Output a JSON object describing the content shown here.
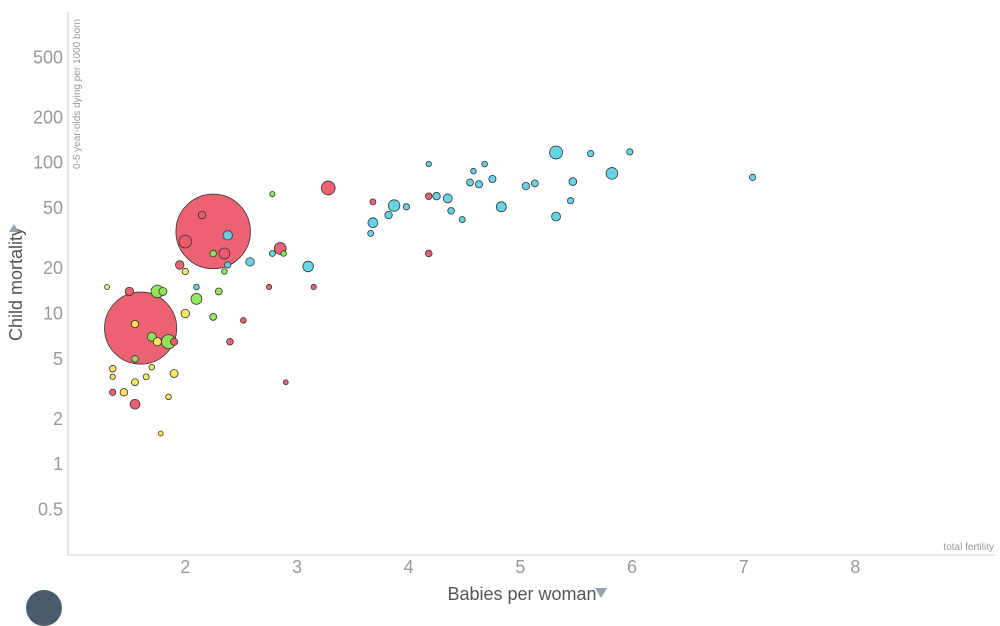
{
  "chart_data": {
    "type": "scatter",
    "xlabel": "Babies per woman",
    "ylabel": "Child mortality",
    "ylabel_sub": "0-5 year-olds dying per 1000 born",
    "xlabel_sub": "total fertility",
    "x_scale": "linear",
    "y_scale": "log",
    "xlim": [
      0.95,
      9.25
    ],
    "ylim": [
      0.25,
      1000
    ],
    "x_ticks": [
      2,
      3,
      4,
      5,
      6,
      7,
      8
    ],
    "y_ticks": [
      0.5,
      1,
      2,
      5,
      10,
      20,
      50,
      100,
      200,
      500
    ],
    "colors": {
      "red": "#ec5a6c",
      "cyan": "#5fd1e3",
      "green": "#8ee653",
      "yellow": "#fbe758"
    },
    "points": [
      {
        "x": 2.25,
        "y": 35,
        "s": 1390,
        "c": "red"
      },
      {
        "x": 1.6,
        "y": 8,
        "s": 1300,
        "c": "red"
      },
      {
        "x": 3.28,
        "y": 68,
        "s": 48,
        "c": "red"
      },
      {
        "x": 2.0,
        "y": 30,
        "s": 40,
        "c": "red"
      },
      {
        "x": 2.85,
        "y": 27,
        "s": 35,
        "c": "red"
      },
      {
        "x": 2.35,
        "y": 25,
        "s": 30,
        "c": "red"
      },
      {
        "x": 1.95,
        "y": 21,
        "s": 18,
        "c": "red"
      },
      {
        "x": 1.5,
        "y": 14,
        "s": 18,
        "c": "red"
      },
      {
        "x": 2.15,
        "y": 45,
        "s": 14,
        "c": "red"
      },
      {
        "x": 1.55,
        "y": 2.5,
        "s": 24,
        "c": "red"
      },
      {
        "x": 1.35,
        "y": 3,
        "s": 10,
        "c": "red"
      },
      {
        "x": 2.4,
        "y": 6.5,
        "s": 11,
        "c": "red"
      },
      {
        "x": 4.18,
        "y": 25,
        "s": 11,
        "c": "red"
      },
      {
        "x": 4.18,
        "y": 60,
        "s": 11,
        "c": "red"
      },
      {
        "x": 3.68,
        "y": 55,
        "s": 9,
        "c": "red"
      },
      {
        "x": 2.52,
        "y": 9,
        "s": 8,
        "c": "red"
      },
      {
        "x": 3.15,
        "y": 15,
        "s": 7,
        "c": "red"
      },
      {
        "x": 2.75,
        "y": 15,
        "s": 7,
        "c": "red"
      },
      {
        "x": 1.9,
        "y": 6.5,
        "s": 13,
        "c": "red"
      },
      {
        "x": 2.9,
        "y": 3.5,
        "s": 6,
        "c": "red"
      },
      {
        "x": 1.75,
        "y": 14,
        "s": 40,
        "c": "green"
      },
      {
        "x": 1.85,
        "y": 6.5,
        "s": 50,
        "c": "green"
      },
      {
        "x": 2.1,
        "y": 12.5,
        "s": 30,
        "c": "green"
      },
      {
        "x": 1.7,
        "y": 7,
        "s": 20,
        "c": "green"
      },
      {
        "x": 2.3,
        "y": 14,
        "s": 12,
        "c": "green"
      },
      {
        "x": 2.25,
        "y": 9.5,
        "s": 12,
        "c": "green"
      },
      {
        "x": 1.55,
        "y": 5,
        "s": 11,
        "c": "green"
      },
      {
        "x": 2.88,
        "y": 25,
        "s": 8,
        "c": "green"
      },
      {
        "x": 2.78,
        "y": 62,
        "s": 7,
        "c": "green"
      },
      {
        "x": 2.25,
        "y": 25,
        "s": 11,
        "c": "green"
      },
      {
        "x": 1.8,
        "y": 14,
        "s": 16,
        "c": "green"
      },
      {
        "x": 2.35,
        "y": 19,
        "s": 8,
        "c": "green"
      },
      {
        "x": 2.0,
        "y": 10,
        "s": 18,
        "c": "yellow"
      },
      {
        "x": 1.9,
        "y": 4,
        "s": 16,
        "c": "yellow"
      },
      {
        "x": 1.75,
        "y": 6.5,
        "s": 17,
        "c": "yellow"
      },
      {
        "x": 1.55,
        "y": 8.5,
        "s": 13,
        "c": "yellow"
      },
      {
        "x": 1.45,
        "y": 3,
        "s": 14,
        "c": "yellow"
      },
      {
        "x": 1.55,
        "y": 3.5,
        "s": 12,
        "c": "yellow"
      },
      {
        "x": 1.35,
        "y": 4.3,
        "s": 11,
        "c": "yellow"
      },
      {
        "x": 2.0,
        "y": 19,
        "s": 10,
        "c": "yellow"
      },
      {
        "x": 1.85,
        "y": 2.8,
        "s": 8,
        "c": "yellow"
      },
      {
        "x": 1.3,
        "y": 15,
        "s": 6,
        "c": "yellow"
      },
      {
        "x": 1.65,
        "y": 3.8,
        "s": 9,
        "c": "yellow"
      },
      {
        "x": 1.7,
        "y": 4.4,
        "s": 8,
        "c": "yellow"
      },
      {
        "x": 1.78,
        "y": 1.6,
        "s": 6,
        "c": "yellow"
      },
      {
        "x": 1.35,
        "y": 3.8,
        "s": 7,
        "c": "yellow"
      },
      {
        "x": 5.32,
        "y": 117,
        "s": 42,
        "c": "cyan"
      },
      {
        "x": 5.82,
        "y": 85,
        "s": 34,
        "c": "cyan"
      },
      {
        "x": 3.87,
        "y": 52,
        "s": 33,
        "c": "cyan"
      },
      {
        "x": 3.1,
        "y": 20.5,
        "s": 28,
        "c": "cyan"
      },
      {
        "x": 4.83,
        "y": 51,
        "s": 25,
        "c": "cyan"
      },
      {
        "x": 3.68,
        "y": 40,
        "s": 24,
        "c": "cyan"
      },
      {
        "x": 4.35,
        "y": 58,
        "s": 20,
        "c": "cyan"
      },
      {
        "x": 5.32,
        "y": 44,
        "s": 20,
        "c": "cyan"
      },
      {
        "x": 2.38,
        "y": 33,
        "s": 22,
        "c": "cyan"
      },
      {
        "x": 2.58,
        "y": 22,
        "s": 18,
        "c": "cyan"
      },
      {
        "x": 5.47,
        "y": 75,
        "s": 15,
        "c": "cyan"
      },
      {
        "x": 4.25,
        "y": 60,
        "s": 14,
        "c": "cyan"
      },
      {
        "x": 5.05,
        "y": 70,
        "s": 14,
        "c": "cyan"
      },
      {
        "x": 3.82,
        "y": 45,
        "s": 14,
        "c": "cyan"
      },
      {
        "x": 4.75,
        "y": 78,
        "s": 13,
        "c": "cyan"
      },
      {
        "x": 4.63,
        "y": 72,
        "s": 13,
        "c": "cyan"
      },
      {
        "x": 5.13,
        "y": 73,
        "s": 12,
        "c": "cyan"
      },
      {
        "x": 5.45,
        "y": 56,
        "s": 10,
        "c": "cyan"
      },
      {
        "x": 4.55,
        "y": 74,
        "s": 12,
        "c": "cyan"
      },
      {
        "x": 4.38,
        "y": 48,
        "s": 11,
        "c": "cyan"
      },
      {
        "x": 5.63,
        "y": 115,
        "s": 10,
        "c": "cyan"
      },
      {
        "x": 5.98,
        "y": 118,
        "s": 10,
        "c": "cyan"
      },
      {
        "x": 7.08,
        "y": 80,
        "s": 10,
        "c": "cyan"
      },
      {
        "x": 4.68,
        "y": 98,
        "s": 8,
        "c": "cyan"
      },
      {
        "x": 4.58,
        "y": 88,
        "s": 8,
        "c": "cyan"
      },
      {
        "x": 4.48,
        "y": 42,
        "s": 9,
        "c": "cyan"
      },
      {
        "x": 4.18,
        "y": 98,
        "s": 7,
        "c": "cyan"
      },
      {
        "x": 3.66,
        "y": 34,
        "s": 9,
        "c": "cyan"
      },
      {
        "x": 2.78,
        "y": 25,
        "s": 9,
        "c": "cyan"
      },
      {
        "x": 2.1,
        "y": 15,
        "s": 8,
        "c": "cyan"
      },
      {
        "x": 2.38,
        "y": 21,
        "s": 10,
        "c": "cyan"
      },
      {
        "x": 3.98,
        "y": 51,
        "s": 10,
        "c": "cyan"
      }
    ]
  }
}
